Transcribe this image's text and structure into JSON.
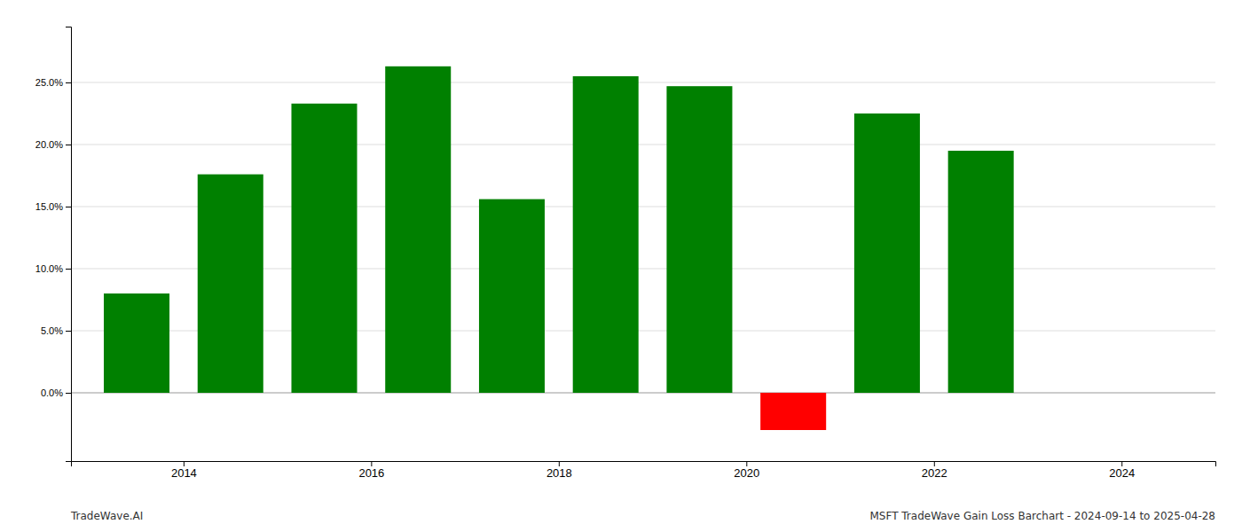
{
  "chart_data": {
    "type": "bar",
    "title": "MSFT TradeWave Gain Loss Barchart - 2024-09-14 to 2025-04-28",
    "annotations": [
      "TradeWave.AI"
    ],
    "x": [
      2013.5,
      2014.5,
      2015.5,
      2016.5,
      2017.5,
      2018.5,
      2019.5,
      2020.5,
      2021.5,
      2022.5
    ],
    "values": [
      0.08,
      0.176,
      0.233,
      0.263,
      0.156,
      0.255,
      0.247,
      -0.03,
      0.225,
      0.195
    ],
    "colors": [
      "#008000",
      "#008000",
      "#008000",
      "#008000",
      "#008000",
      "#008000",
      "#008000",
      "#ff0000",
      "#008000",
      "#008000"
    ],
    "xlim": [
      2012.8,
      2025.0
    ],
    "xticks": [
      2014,
      2016,
      2018,
      2020,
      2022,
      2024
    ],
    "ylim": [
      -0.055,
      0.295
    ],
    "yticks": [
      {
        "value": 0.0,
        "label": "0.0%"
      },
      {
        "value": 0.05,
        "label": "5.0%"
      },
      {
        "value": 0.1,
        "label": "10.0%"
      },
      {
        "value": 0.15,
        "label": "15.0%"
      },
      {
        "value": 0.2,
        "label": "20.0%"
      },
      {
        "value": 0.25,
        "label": "25.0%"
      }
    ],
    "grid": true
  }
}
